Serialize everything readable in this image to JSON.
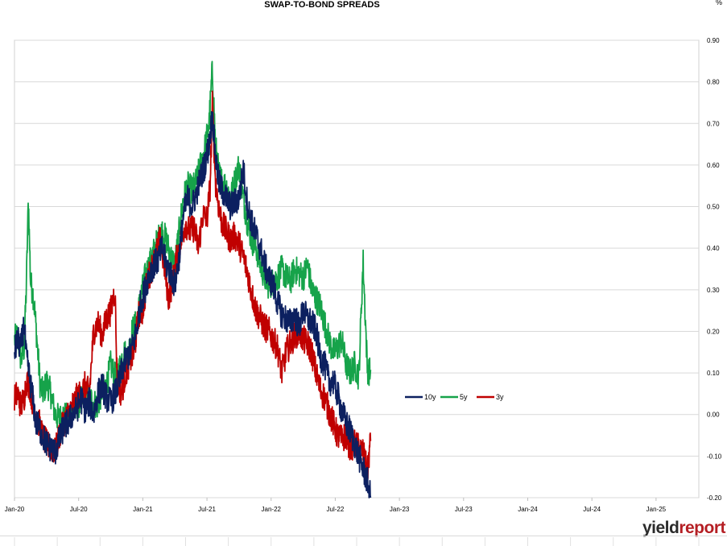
{
  "chart_data": {
    "type": "line",
    "title": "SWAP-TO-BOND SPREADS",
    "unit": "%",
    "x_start": "Jan-20",
    "x_end": "Apr-25",
    "x_ticks": [
      "Jan-20",
      "Jul-20",
      "Jan-21",
      "Jul-21",
      "Jan-22",
      "Jul-22",
      "Jan-23",
      "Jul-23",
      "Jan-24",
      "Jul-24",
      "Jan-25"
    ],
    "ylim": [
      -0.2,
      0.9
    ],
    "y_ticks": [
      "0.90",
      "0.80",
      "0.70",
      "0.60",
      "0.50",
      "0.40",
      "0.30",
      "0.20",
      "0.10",
      "0.00",
      "-0.10",
      "-0.20"
    ],
    "y_axis_side": "right",
    "grid": true,
    "legend_placement": "center-right",
    "series": [
      {
        "name": "10y",
        "color": "#0c2060",
        "points": [
          [
            0.0,
            0.15
          ],
          [
            0.3,
            0.18
          ],
          [
            0.6,
            0.16
          ],
          [
            0.9,
            0.22
          ],
          [
            1.1,
            0.14
          ],
          [
            1.4,
            0.09
          ],
          [
            1.7,
            0.04
          ],
          [
            2.0,
            -0.02
          ],
          [
            2.3,
            -0.03
          ],
          [
            2.6,
            -0.05
          ],
          [
            3.0,
            -0.07
          ],
          [
            3.4,
            -0.08
          ],
          [
            3.8,
            -0.09
          ],
          [
            4.2,
            -0.06
          ],
          [
            4.6,
            -0.03
          ],
          [
            5.0,
            -0.02
          ],
          [
            5.4,
            0.0
          ],
          [
            5.8,
            0.01
          ],
          [
            6.2,
            0.04
          ],
          [
            6.6,
            0.01
          ],
          [
            7.0,
            0.03
          ],
          [
            7.4,
            0.0
          ],
          [
            7.8,
            0.05
          ],
          [
            8.2,
            0.07
          ],
          [
            8.6,
            0.04
          ],
          [
            9.0,
            0.03
          ],
          [
            9.4,
            0.05
          ],
          [
            9.8,
            0.08
          ],
          [
            10.2,
            0.12
          ],
          [
            10.6,
            0.14
          ],
          [
            11.0,
            0.16
          ],
          [
            11.4,
            0.2
          ],
          [
            11.8,
            0.27
          ],
          [
            12.2,
            0.3
          ],
          [
            12.6,
            0.34
          ],
          [
            13.0,
            0.36
          ],
          [
            13.4,
            0.37
          ],
          [
            13.8,
            0.4
          ],
          [
            14.2,
            0.36
          ],
          [
            14.6,
            0.34
          ],
          [
            15.0,
            0.31
          ],
          [
            15.4,
            0.38
          ],
          [
            15.8,
            0.48
          ],
          [
            16.2,
            0.52
          ],
          [
            16.6,
            0.5
          ],
          [
            17.0,
            0.53
          ],
          [
            17.4,
            0.57
          ],
          [
            17.8,
            0.6
          ],
          [
            18.2,
            0.65
          ],
          [
            18.5,
            0.72
          ],
          [
            18.8,
            0.62
          ],
          [
            19.1,
            0.56
          ],
          [
            19.4,
            0.54
          ],
          [
            19.8,
            0.52
          ],
          [
            20.2,
            0.5
          ],
          [
            20.6,
            0.51
          ],
          [
            21.0,
            0.52
          ],
          [
            21.4,
            0.59
          ],
          [
            21.8,
            0.5
          ],
          [
            22.2,
            0.46
          ],
          [
            22.6,
            0.43
          ],
          [
            23.0,
            0.4
          ],
          [
            23.4,
            0.36
          ],
          [
            23.8,
            0.33
          ],
          [
            24.2,
            0.31
          ],
          [
            24.6,
            0.27
          ],
          [
            25.0,
            0.24
          ],
          [
            25.4,
            0.23
          ],
          [
            25.8,
            0.22
          ],
          [
            26.2,
            0.24
          ],
          [
            26.6,
            0.21
          ],
          [
            27.0,
            0.25
          ],
          [
            27.4,
            0.23
          ],
          [
            27.8,
            0.22
          ],
          [
            28.2,
            0.2
          ],
          [
            28.6,
            0.14
          ],
          [
            29.0,
            0.12
          ],
          [
            29.4,
            0.08
          ],
          [
            29.8,
            0.08
          ],
          [
            30.2,
            0.05
          ],
          [
            30.6,
            0.01
          ],
          [
            31.0,
            -0.02
          ],
          [
            31.4,
            -0.04
          ],
          [
            31.8,
            -0.07
          ],
          [
            32.2,
            -0.1
          ],
          [
            32.6,
            -0.13
          ],
          [
            33.0,
            -0.16
          ],
          [
            33.3,
            -0.2
          ]
        ]
      },
      {
        "name": "5y",
        "color": "#16a34a",
        "points": [
          [
            0.0,
            0.18
          ],
          [
            0.3,
            0.19
          ],
          [
            0.6,
            0.13
          ],
          [
            0.9,
            0.16
          ],
          [
            1.1,
            0.3
          ],
          [
            1.3,
            0.52
          ],
          [
            1.5,
            0.32
          ],
          [
            1.8,
            0.28
          ],
          [
            2.1,
            0.18
          ],
          [
            2.4,
            0.07
          ],
          [
            2.7,
            0.05
          ],
          [
            3.0,
            0.08
          ],
          [
            3.4,
            0.05
          ],
          [
            3.8,
            0.0
          ],
          [
            4.2,
            -0.01
          ],
          [
            4.6,
            0.0
          ],
          [
            5.0,
            -0.01
          ],
          [
            5.4,
            0.01
          ],
          [
            5.8,
            0.02
          ],
          [
            6.2,
            0.03
          ],
          [
            6.6,
            0.05
          ],
          [
            7.0,
            0.04
          ],
          [
            7.4,
            0.03
          ],
          [
            7.8,
            0.02
          ],
          [
            8.2,
            0.06
          ],
          [
            8.6,
            0.07
          ],
          [
            9.0,
            0.12
          ],
          [
            9.4,
            0.09
          ],
          [
            9.8,
            0.11
          ],
          [
            10.2,
            0.15
          ],
          [
            10.6,
            0.14
          ],
          [
            11.0,
            0.2
          ],
          [
            11.4,
            0.22
          ],
          [
            11.8,
            0.28
          ],
          [
            12.2,
            0.33
          ],
          [
            12.6,
            0.36
          ],
          [
            13.0,
            0.39
          ],
          [
            13.4,
            0.42
          ],
          [
            13.8,
            0.44
          ],
          [
            14.2,
            0.42
          ],
          [
            14.6,
            0.38
          ],
          [
            15.0,
            0.36
          ],
          [
            15.4,
            0.44
          ],
          [
            15.8,
            0.52
          ],
          [
            16.2,
            0.55
          ],
          [
            16.6,
            0.54
          ],
          [
            17.0,
            0.56
          ],
          [
            17.4,
            0.6
          ],
          [
            17.8,
            0.64
          ],
          [
            18.2,
            0.7
          ],
          [
            18.5,
            0.83
          ],
          [
            18.8,
            0.65
          ],
          [
            19.1,
            0.58
          ],
          [
            19.4,
            0.56
          ],
          [
            19.8,
            0.55
          ],
          [
            20.2,
            0.52
          ],
          [
            20.6,
            0.56
          ],
          [
            21.0,
            0.6
          ],
          [
            21.4,
            0.52
          ],
          [
            21.8,
            0.46
          ],
          [
            22.2,
            0.42
          ],
          [
            22.6,
            0.4
          ],
          [
            23.0,
            0.36
          ],
          [
            23.4,
            0.33
          ],
          [
            23.8,
            0.31
          ],
          [
            24.2,
            0.32
          ],
          [
            24.6,
            0.33
          ],
          [
            25.0,
            0.35
          ],
          [
            25.4,
            0.33
          ],
          [
            25.8,
            0.32
          ],
          [
            26.2,
            0.35
          ],
          [
            26.6,
            0.34
          ],
          [
            27.0,
            0.33
          ],
          [
            27.4,
            0.36
          ],
          [
            27.8,
            0.3
          ],
          [
            28.2,
            0.28
          ],
          [
            28.6,
            0.26
          ],
          [
            29.0,
            0.22
          ],
          [
            29.4,
            0.18
          ],
          [
            29.8,
            0.15
          ],
          [
            30.2,
            0.16
          ],
          [
            30.6,
            0.18
          ],
          [
            31.0,
            0.12
          ],
          [
            31.4,
            0.1
          ],
          [
            31.8,
            0.12
          ],
          [
            32.2,
            0.09
          ],
          [
            32.6,
            0.37
          ],
          [
            33.0,
            0.11
          ],
          [
            33.3,
            0.1
          ]
        ]
      },
      {
        "name": "3y",
        "color": "#c00000",
        "points": [
          [
            0.0,
            0.04
          ],
          [
            0.3,
            0.05
          ],
          [
            0.6,
            0.02
          ],
          [
            0.9,
            0.04
          ],
          [
            1.1,
            0.08
          ],
          [
            1.4,
            0.07
          ],
          [
            1.7,
            0.03
          ],
          [
            2.0,
            0.0
          ],
          [
            2.3,
            -0.02
          ],
          [
            2.6,
            -0.05
          ],
          [
            3.0,
            -0.07
          ],
          [
            3.4,
            -0.08
          ],
          [
            3.8,
            -0.09
          ],
          [
            4.2,
            -0.05
          ],
          [
            4.6,
            -0.02
          ],
          [
            5.0,
            0.0
          ],
          [
            5.4,
            0.02
          ],
          [
            5.8,
            0.04
          ],
          [
            6.2,
            0.05
          ],
          [
            6.6,
            0.07
          ],
          [
            7.0,
            0.05
          ],
          [
            7.4,
            0.2
          ],
          [
            7.8,
            0.22
          ],
          [
            8.2,
            0.19
          ],
          [
            8.6,
            0.23
          ],
          [
            9.0,
            0.25
          ],
          [
            9.4,
            0.3
          ],
          [
            9.6,
            0.08
          ],
          [
            10.0,
            0.05
          ],
          [
            10.4,
            0.1
          ],
          [
            10.8,
            0.13
          ],
          [
            11.2,
            0.15
          ],
          [
            11.6,
            0.24
          ],
          [
            12.0,
            0.25
          ],
          [
            12.4,
            0.32
          ],
          [
            12.8,
            0.35
          ],
          [
            13.2,
            0.38
          ],
          [
            13.6,
            0.42
          ],
          [
            14.0,
            0.36
          ],
          [
            14.4,
            0.28
          ],
          [
            14.8,
            0.32
          ],
          [
            15.2,
            0.38
          ],
          [
            15.6,
            0.42
          ],
          [
            16.0,
            0.46
          ],
          [
            16.4,
            0.44
          ],
          [
            16.8,
            0.45
          ],
          [
            17.2,
            0.4
          ],
          [
            17.6,
            0.48
          ],
          [
            18.0,
            0.47
          ],
          [
            18.3,
            0.55
          ],
          [
            18.5,
            0.75
          ],
          [
            18.8,
            0.56
          ],
          [
            19.1,
            0.5
          ],
          [
            19.4,
            0.46
          ],
          [
            19.8,
            0.44
          ],
          [
            20.2,
            0.42
          ],
          [
            20.6,
            0.43
          ],
          [
            21.0,
            0.41
          ],
          [
            21.4,
            0.38
          ],
          [
            21.8,
            0.34
          ],
          [
            22.2,
            0.29
          ],
          [
            22.6,
            0.25
          ],
          [
            23.0,
            0.23
          ],
          [
            23.4,
            0.21
          ],
          [
            23.8,
            0.2
          ],
          [
            24.2,
            0.18
          ],
          [
            24.6,
            0.16
          ],
          [
            25.0,
            0.1
          ],
          [
            25.4,
            0.15
          ],
          [
            25.8,
            0.17
          ],
          [
            26.2,
            0.19
          ],
          [
            26.6,
            0.2
          ],
          [
            27.0,
            0.18
          ],
          [
            27.4,
            0.17
          ],
          [
            27.8,
            0.15
          ],
          [
            28.2,
            0.1
          ],
          [
            28.6,
            0.06
          ],
          [
            29.0,
            0.04
          ],
          [
            29.4,
            0.01
          ],
          [
            29.8,
            -0.02
          ],
          [
            30.2,
            -0.05
          ],
          [
            30.6,
            -0.06
          ],
          [
            31.0,
            -0.05
          ],
          [
            31.4,
            -0.08
          ],
          [
            31.8,
            -0.07
          ],
          [
            32.2,
            -0.08
          ],
          [
            32.6,
            -0.09
          ],
          [
            33.0,
            -0.14
          ],
          [
            33.3,
            -0.06
          ]
        ]
      }
    ]
  },
  "brand": {
    "part1": "yield",
    "part2": "report"
  }
}
